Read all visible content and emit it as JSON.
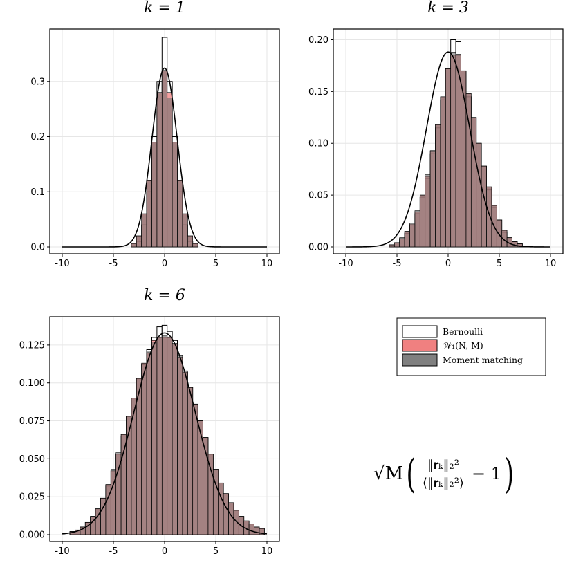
{
  "chart_data": [
    {
      "type": "bar",
      "title": "k = 1",
      "xlim": [
        -10,
        10
      ],
      "ylim": [
        0,
        0.385
      ],
      "xticks": [
        -10,
        -5,
        0,
        5,
        10
      ],
      "xtick_labels": [
        "-10",
        "-5",
        "0",
        "5",
        "10"
      ],
      "yticks": [
        0.0,
        0.1,
        0.2,
        0.3
      ],
      "ytick_labels": [
        "0.0",
        "0.1",
        "0.2",
        "0.3"
      ],
      "grid": true,
      "bin_width": 0.5,
      "bins_x": [
        -3.0,
        -2.5,
        -2.0,
        -1.5,
        -1.0,
        -0.5,
        0.0,
        0.5,
        1.0,
        1.5,
        2.0,
        2.5,
        3.0
      ],
      "series": [
        {
          "name": "Bernoulli",
          "values": [
            0.002,
            0.01,
            0.04,
            0.1,
            0.2,
            0.3,
            0.38,
            0.3,
            0.2,
            0.1,
            0.04,
            0.01,
            0.002
          ]
        },
        {
          "name": "W1(N,M)",
          "values": [
            0.006,
            0.02,
            0.06,
            0.12,
            0.19,
            0.28,
            0.32,
            0.28,
            0.19,
            0.12,
            0.06,
            0.02,
            0.006
          ]
        },
        {
          "name": "Moment matching",
          "values": [
            0.006,
            0.02,
            0.06,
            0.12,
            0.19,
            0.28,
            0.32,
            0.27,
            0.19,
            0.12,
            0.06,
            0.02,
            0.006
          ]
        }
      ],
      "curve": {
        "type": "normal",
        "mean": 0,
        "sd": 1.23
      }
    },
    {
      "type": "bar",
      "title": "k = 3",
      "xlim": [
        -10,
        10
      ],
      "ylim": [
        0,
        0.205
      ],
      "xticks": [
        -10,
        -5,
        0,
        5,
        10
      ],
      "xtick_labels": [
        "-10",
        "-5",
        "0",
        "5",
        "10"
      ],
      "yticks": [
        0.0,
        0.05,
        0.1,
        0.15,
        0.2
      ],
      "ytick_labels": [
        "0.00",
        "0.05",
        "0.10",
        "0.15",
        "0.20"
      ],
      "grid": true,
      "bin_width": 0.5,
      "bins_x": [
        -5.5,
        -5.0,
        -4.5,
        -4.0,
        -3.5,
        -3.0,
        -2.5,
        -2.0,
        -1.5,
        -1.0,
        -0.5,
        0.0,
        0.5,
        1.0,
        1.5,
        2.0,
        2.5,
        3.0,
        3.5,
        4.0,
        4.5,
        5.0,
        5.5,
        6.0,
        6.5,
        7.0,
        7.5
      ],
      "series": [
        {
          "name": "Bernoulli",
          "values": [
            0.002,
            0.004,
            0.008,
            0.013,
            0.021,
            0.032,
            0.048,
            0.066,
            0.09,
            0.115,
            0.142,
            0.172,
            0.2,
            0.198,
            0.17,
            0.145,
            0.125,
            0.1,
            0.078,
            0.055,
            0.038,
            0.026,
            0.014,
            0.008,
            0.005,
            0.003,
            0.001
          ]
        },
        {
          "name": "W1(N,M)",
          "values": [
            0.002,
            0.004,
            0.008,
            0.015,
            0.022,
            0.034,
            0.05,
            0.068,
            0.092,
            0.118,
            0.145,
            0.172,
            0.185,
            0.185,
            0.17,
            0.148,
            0.125,
            0.1,
            0.078,
            0.058,
            0.04,
            0.026,
            0.016,
            0.009,
            0.005,
            0.003,
            0.001
          ]
        },
        {
          "name": "Moment matching",
          "values": [
            0.002,
            0.004,
            0.009,
            0.015,
            0.023,
            0.035,
            0.05,
            0.07,
            0.093,
            0.118,
            0.145,
            0.172,
            0.188,
            0.186,
            0.17,
            0.148,
            0.125,
            0.1,
            0.078,
            0.058,
            0.04,
            0.026,
            0.016,
            0.009,
            0.005,
            0.003,
            0.001
          ]
        }
      ],
      "curve": {
        "type": "normal",
        "mean": 0,
        "sd": 2.12
      }
    },
    {
      "type": "bar",
      "title": "k = 6",
      "xlim": [
        -10,
        10
      ],
      "ylim": [
        0,
        0.14
      ],
      "xticks": [
        -10,
        -5,
        0,
        5,
        10
      ],
      "xtick_labels": [
        "-10",
        "-5",
        "0",
        "5",
        "10"
      ],
      "yticks": [
        0.0,
        0.025,
        0.05,
        0.075,
        0.1,
        0.125
      ],
      "ytick_labels": [
        "0.000",
        "0.025",
        "0.050",
        "0.075",
        "0.100",
        "0.125"
      ],
      "grid": true,
      "bin_width": 0.5,
      "bins_x": [
        -9.0,
        -8.5,
        -8.0,
        -7.5,
        -7.0,
        -6.5,
        -6.0,
        -5.5,
        -5.0,
        -4.5,
        -4.0,
        -3.5,
        -3.0,
        -2.5,
        -2.0,
        -1.5,
        -1.0,
        -0.5,
        0.0,
        0.5,
        1.0,
        1.5,
        2.0,
        2.5,
        3.0,
        3.5,
        4.0,
        4.5,
        5.0,
        5.5,
        6.0,
        6.5,
        7.0,
        7.5,
        8.0,
        8.5,
        9.0,
        9.5
      ],
      "series": [
        {
          "name": "Bernoulli",
          "values": [
            0.002,
            0.003,
            0.005,
            0.008,
            0.012,
            0.017,
            0.024,
            0.032,
            0.042,
            0.053,
            0.065,
            0.078,
            0.09,
            0.102,
            0.112,
            0.122,
            0.13,
            0.137,
            0.138,
            0.134,
            0.128,
            0.117,
            0.107,
            0.097,
            0.086,
            0.075,
            0.064,
            0.053,
            0.043,
            0.034,
            0.027,
            0.021,
            0.016,
            0.012,
            0.009,
            0.007,
            0.005,
            0.004
          ]
        },
        {
          "name": "W1(N,M)",
          "values": [
            0.002,
            0.003,
            0.005,
            0.008,
            0.012,
            0.017,
            0.024,
            0.033,
            0.042,
            0.053,
            0.066,
            0.078,
            0.09,
            0.103,
            0.113,
            0.12,
            0.128,
            0.13,
            0.13,
            0.13,
            0.126,
            0.117,
            0.107,
            0.097,
            0.086,
            0.075,
            0.064,
            0.053,
            0.043,
            0.034,
            0.027,
            0.021,
            0.016,
            0.012,
            0.009,
            0.007,
            0.005,
            0.004
          ]
        },
        {
          "name": "Moment matching",
          "values": [
            0.002,
            0.003,
            0.005,
            0.008,
            0.012,
            0.017,
            0.024,
            0.033,
            0.043,
            0.054,
            0.066,
            0.078,
            0.09,
            0.103,
            0.113,
            0.121,
            0.127,
            0.13,
            0.131,
            0.13,
            0.126,
            0.118,
            0.108,
            0.097,
            0.086,
            0.075,
            0.064,
            0.053,
            0.043,
            0.034,
            0.027,
            0.021,
            0.016,
            0.012,
            0.009,
            0.007,
            0.005,
            0.004
          ]
        }
      ],
      "curve": {
        "type": "normal",
        "mean": 0,
        "sd": 3.0
      }
    }
  ],
  "legend": {
    "placement": "right-middle",
    "entries": [
      {
        "label": "Bernoulli",
        "color": "#ffffff"
      },
      {
        "label": "𝒲₁(N, M)",
        "color": "#f08080"
      },
      {
        "label": "Moment matching",
        "color": "#808080"
      }
    ]
  },
  "formula": {
    "sqrt": "√M",
    "left_paren": "(",
    "numerator": "‖𝐫ₖ‖₂²",
    "denominator": "⟨‖𝐫ₖ‖₂²⟩",
    "minus_one": "− 1",
    "right_paren": ")"
  },
  "colors": {
    "bernoulli_fill": "#ffffff",
    "w1_fill": "#f08080",
    "moment_fill": "#6e6e6e",
    "bar_edge": "#000000",
    "grid": "#e6e6e6"
  }
}
